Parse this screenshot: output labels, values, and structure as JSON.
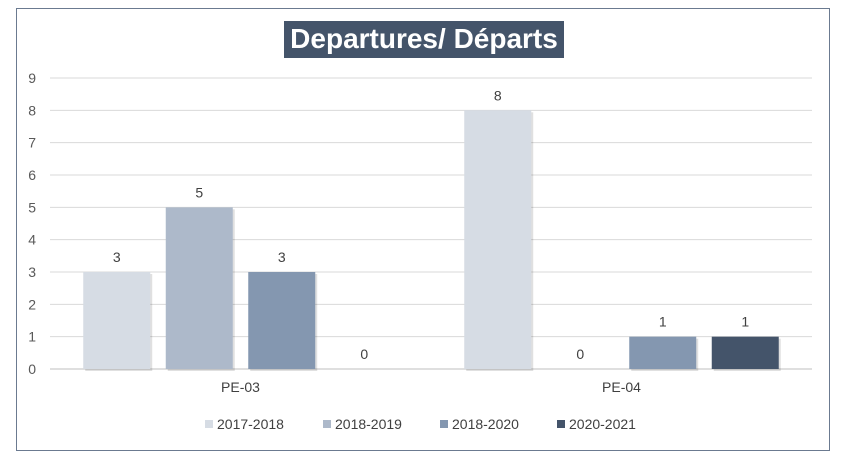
{
  "chart_data": {
    "type": "bar",
    "title": "Departures/ Départs",
    "categories": [
      "PE-03",
      "PE-04"
    ],
    "series": [
      {
        "name": "2017-2018",
        "values": [
          3,
          8
        ],
        "color": "#d6dce4"
      },
      {
        "name": "2018-2019",
        "values": [
          5,
          0
        ],
        "color": "#adb9ca"
      },
      {
        "name": "2018-2020",
        "values": [
          3,
          1
        ],
        "color": "#8497b0"
      },
      {
        "name": "2020-2021",
        "values": [
          0,
          1
        ],
        "color": "#44546a"
      }
    ],
    "ylim": [
      0,
      9
    ],
    "yticks": [
      "0",
      "1",
      "2",
      "3",
      "4",
      "5",
      "6",
      "7",
      "8",
      "9"
    ],
    "grid": true,
    "legend_position": "bottom"
  }
}
